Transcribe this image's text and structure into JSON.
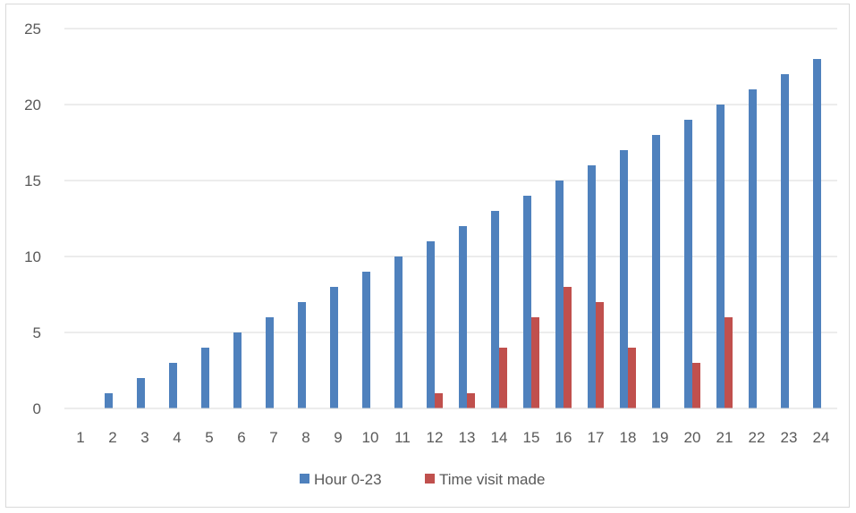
{
  "chart_data": {
    "type": "bar",
    "title": "",
    "xlabel": "",
    "ylabel": "",
    "categories": [
      "1",
      "2",
      "3",
      "4",
      "5",
      "6",
      "7",
      "8",
      "9",
      "10",
      "11",
      "12",
      "13",
      "14",
      "15",
      "16",
      "17",
      "18",
      "19",
      "20",
      "21",
      "22",
      "23",
      "24"
    ],
    "series": [
      {
        "name": "Hour 0-23",
        "color": "#4f81bd",
        "values": [
          0,
          1,
          2,
          3,
          4,
          5,
          6,
          7,
          8,
          9,
          10,
          11,
          12,
          13,
          14,
          15,
          16,
          17,
          18,
          19,
          20,
          21,
          22,
          23
        ]
      },
      {
        "name": "Time visit made",
        "color": "#c0504d",
        "values": [
          0,
          0,
          0,
          0,
          0,
          0,
          0,
          0,
          0,
          0,
          0,
          1,
          1,
          4,
          6,
          8,
          7,
          4,
          0,
          3,
          6,
          0,
          0,
          0
        ]
      }
    ],
    "ylim": [
      0,
      25
    ],
    "yticks": [
      0,
      5,
      10,
      15,
      20,
      25
    ],
    "grid": true,
    "legend_position": "bottom"
  }
}
